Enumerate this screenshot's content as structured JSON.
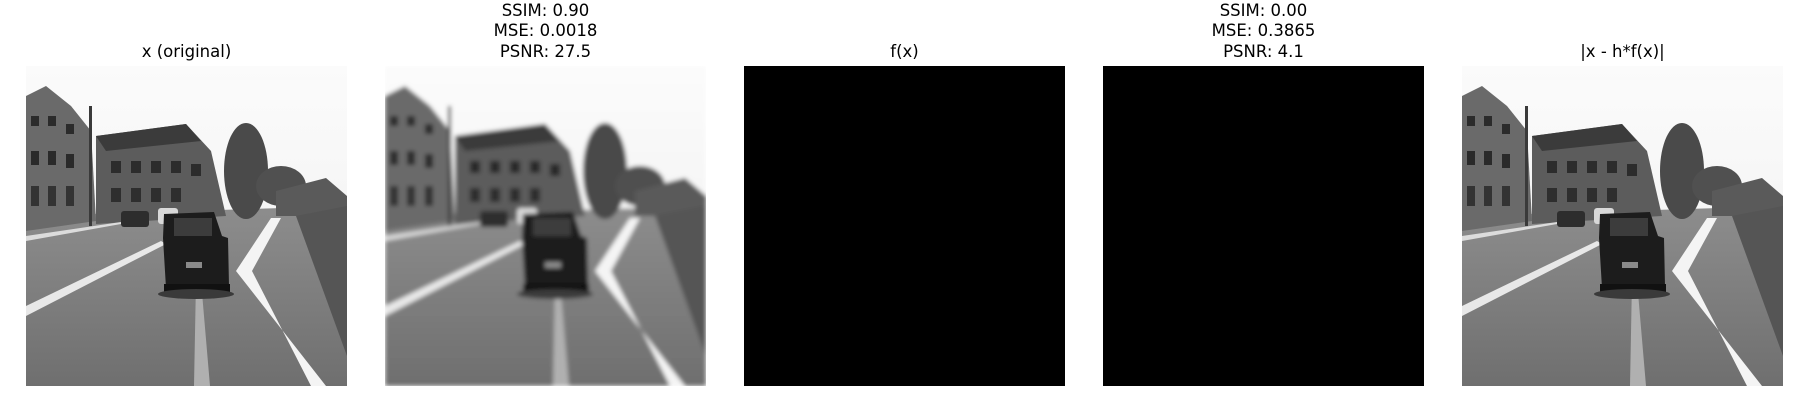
{
  "panels": [
    {
      "title": "x (original)",
      "image": "street-scene-grayscale"
    },
    {
      "title": [
        "SSIM: 0.90",
        "MSE: 0.0018",
        "PSNR: 27.5"
      ],
      "image": "street-scene-blurred"
    },
    {
      "title": "f(x)",
      "image": "black-image"
    },
    {
      "title": [
        "SSIM: 0.00",
        "MSE: 0.3865",
        "PSNR: 4.1"
      ],
      "image": "black-image"
    },
    {
      "title": "|x - h*f(x)|",
      "image": "street-scene-grayscale"
    }
  ]
}
